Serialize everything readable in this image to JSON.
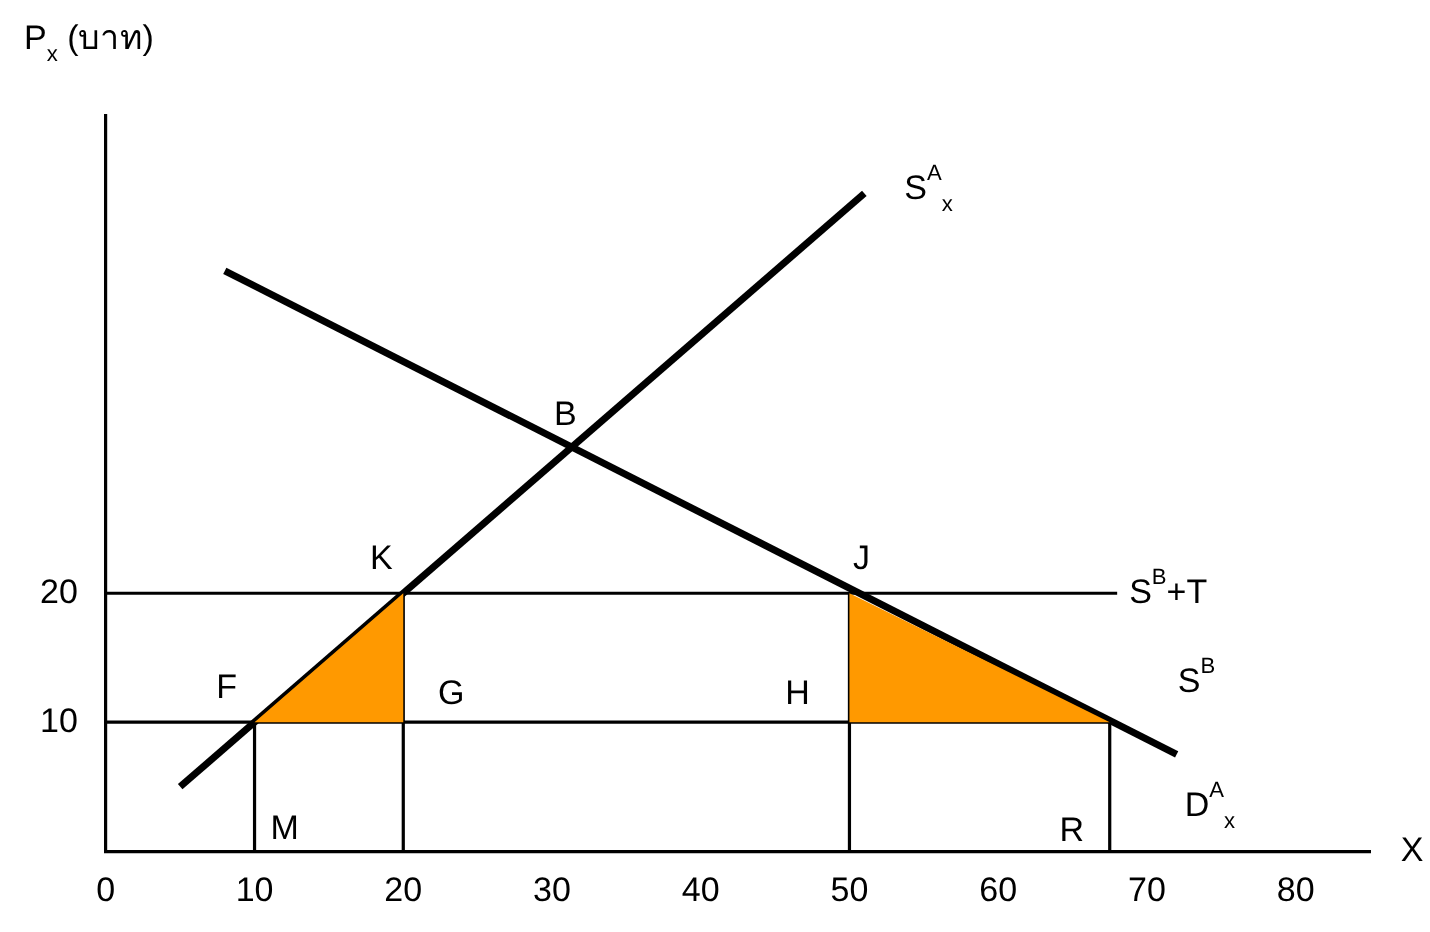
{
  "chart_data": {
    "type": "line",
    "xlabel": "X",
    "ylabel": "P$_{x}$ (บาท)",
    "xlim": [
      0,
      85
    ],
    "ylim": [
      0,
      57
    ],
    "xticks": [
      0,
      10,
      20,
      30,
      40,
      50,
      60,
      70,
      80
    ],
    "yticks": [
      10,
      20
    ],
    "grid": false,
    "legend": false,
    "marker": "none",
    "series": [
      {
        "type": "area",
        "color": "#ff9900",
        "x": [
          10,
          20,
          20
        ],
        "values": [
          10,
          20,
          10
        ]
      },
      {
        "type": "area",
        "color": "#ff9900",
        "x": [
          50,
          50,
          67.5
        ],
        "values": [
          10,
          20,
          10
        ]
      },
      {
        "name": "S$^{A}$$_{x}$",
        "color": "#000000",
        "x": [
          5,
          51
        ],
        "values": [
          5,
          51
        ]
      },
      {
        "name": "D$^{A}$$_{x}$",
        "color": "#000000",
        "x": [
          8,
          72
        ],
        "values": [
          45,
          7.5
        ]
      },
      {
        "name": "S$^{B}$+T",
        "color": "#000000",
        "x": [
          0,
          68
        ],
        "values": [
          20,
          20
        ]
      },
      {
        "name": "S$^{B}$",
        "color": "#000000",
        "x": [
          0,
          67.5
        ],
        "values": [
          10,
          10
        ]
      },
      {
        "color": "#000000",
        "x": [
          10,
          10
        ],
        "values": [
          0,
          10
        ]
      },
      {
        "color": "#000000",
        "x": [
          20,
          20
        ],
        "values": [
          0,
          20
        ]
      },
      {
        "color": "#000000",
        "x": [
          50,
          50
        ],
        "values": [
          0,
          20
        ]
      },
      {
        "color": "#000000",
        "x": [
          67.5,
          67.5
        ],
        "values": [
          0,
          10
        ]
      }
    ],
    "annotations": [
      {
        "text": "B",
        "x": 31.3,
        "y": 31.3
      },
      {
        "text": "K",
        "x": 20,
        "y": 20
      },
      {
        "text": "J",
        "x": 50,
        "y": 20
      },
      {
        "text": "F",
        "x": 10,
        "y": 10
      },
      {
        "text": "G",
        "x": 20,
        "y": 10
      },
      {
        "text": "H",
        "x": 50,
        "y": 10
      },
      {
        "text": "M",
        "x": 10,
        "y": 0
      },
      {
        "text": "R",
        "x": 67.5,
        "y": 0
      }
    ]
  }
}
